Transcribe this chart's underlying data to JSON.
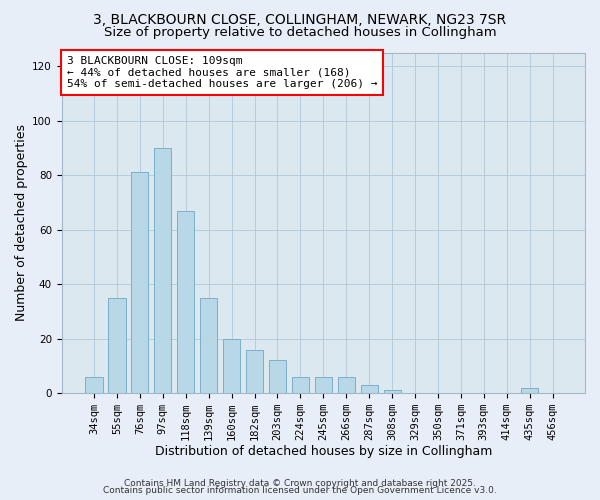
{
  "title_line1": "3, BLACKBOURN CLOSE, COLLINGHAM, NEWARK, NG23 7SR",
  "title_line2": "Size of property relative to detached houses in Collingham",
  "xlabel": "Distribution of detached houses by size in Collingham",
  "ylabel": "Number of detached properties",
  "bar_labels": [
    "34sqm",
    "55sqm",
    "76sqm",
    "97sqm",
    "118sqm",
    "139sqm",
    "160sqm",
    "182sqm",
    "203sqm",
    "224sqm",
    "245sqm",
    "266sqm",
    "287sqm",
    "308sqm",
    "329sqm",
    "350sqm",
    "371sqm",
    "393sqm",
    "414sqm",
    "435sqm",
    "456sqm"
  ],
  "bar_values": [
    6,
    35,
    81,
    90,
    67,
    35,
    20,
    16,
    12,
    6,
    6,
    6,
    3,
    1,
    0,
    0,
    0,
    0,
    0,
    2,
    0
  ],
  "bar_color": "#b8d8e8",
  "bar_edge_color": "#7ab0c8",
  "ylim": [
    0,
    125
  ],
  "yticks": [
    0,
    20,
    40,
    60,
    80,
    100,
    120
  ],
  "annotation_title": "3 BLACKBOURN CLOSE: 109sqm",
  "annotation_line2": "← 44% of detached houses are smaller (168)",
  "annotation_line3": "54% of semi-detached houses are larger (206) →",
  "footer_line1": "Contains HM Land Registry data © Crown copyright and database right 2025.",
  "footer_line2": "Contains public sector information licensed under the Open Government Licence v3.0.",
  "background_color": "#e8eef8",
  "plot_bg_color": "#dce8f0",
  "grid_color": "#b0c8d8",
  "title_fontsize": 10,
  "subtitle_fontsize": 9.5,
  "axis_label_fontsize": 9,
  "tick_fontsize": 7.5,
  "annotation_fontsize": 8,
  "footer_fontsize": 6.5
}
